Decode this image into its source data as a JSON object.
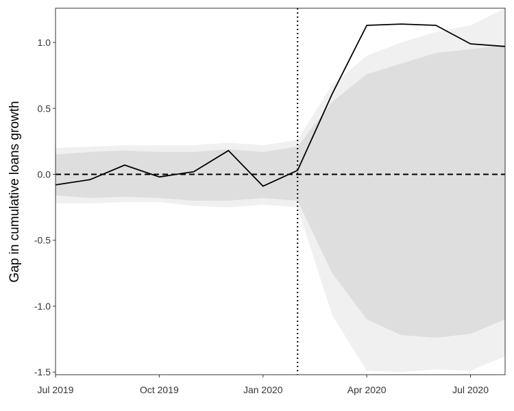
{
  "chart_data": {
    "type": "line",
    "title": "",
    "xlabel": "",
    "ylabel": "Gap in cumulative loans growth",
    "xlim": [
      "2019-07",
      "2020-08"
    ],
    "ylim": [
      -1.52,
      1.26
    ],
    "x_ticks": [
      {
        "label": "Jul 2019",
        "value": "2019-07"
      },
      {
        "label": "Oct 2019",
        "value": "2019-10"
      },
      {
        "label": "Jan 2020",
        "value": "2020-01"
      },
      {
        "label": "Apr 2020",
        "value": "2020-04"
      },
      {
        "label": "Jul 2020",
        "value": "2020-07"
      }
    ],
    "y_ticks": [
      {
        "label": "1.0",
        "value": 1.0
      },
      {
        "label": "0.5",
        "value": 0.5
      },
      {
        "label": "0.0",
        "value": 0.0
      },
      {
        "label": "-0.5",
        "value": -0.5
      },
      {
        "label": "-1.0",
        "value": -1.0
      },
      {
        "label": "-1.5",
        "value": -1.5
      }
    ],
    "grid": false,
    "x": [
      "2019-07",
      "2019-08",
      "2019-09",
      "2019-10",
      "2019-11",
      "2019-12",
      "2020-01",
      "2020-02",
      "2020-03",
      "2020-04",
      "2020-05",
      "2020-06",
      "2020-07",
      "2020-08"
    ],
    "series": [
      {
        "values": [
          -0.08,
          -0.04,
          0.07,
          -0.02,
          0.02,
          0.18,
          -0.09,
          0.03,
          0.61,
          1.13,
          1.14,
          1.13,
          0.99,
          0.97
        ]
      }
    ],
    "bands": [
      {
        "level": "outer",
        "color": "#f0f0f0",
        "lower": [
          -0.22,
          -0.22,
          -0.21,
          -0.21,
          -0.24,
          -0.25,
          -0.23,
          -0.25,
          -1.07,
          -1.49,
          -1.5,
          -1.48,
          -1.49,
          -1.38
        ],
        "upper": [
          0.2,
          0.21,
          0.22,
          0.22,
          0.22,
          0.24,
          0.22,
          0.26,
          0.68,
          0.9,
          1.0,
          1.08,
          1.13,
          1.26
        ]
      },
      {
        "level": "inner",
        "color": "#dedede",
        "lower": [
          -0.16,
          -0.18,
          -0.17,
          -0.18,
          -0.2,
          -0.2,
          -0.18,
          -0.2,
          -0.75,
          -1.1,
          -1.22,
          -1.24,
          -1.21,
          -1.1
        ],
        "upper": [
          0.15,
          0.17,
          0.18,
          0.17,
          0.17,
          0.19,
          0.17,
          0.21,
          0.55,
          0.76,
          0.84,
          0.92,
          0.95,
          0.98
        ]
      }
    ],
    "reference_lines": [
      {
        "axis": "y",
        "value": 0.0,
        "style": "dashed",
        "color": "#000000"
      },
      {
        "axis": "x",
        "value": "2020-02",
        "style": "dotted",
        "color": "#000000"
      }
    ]
  }
}
